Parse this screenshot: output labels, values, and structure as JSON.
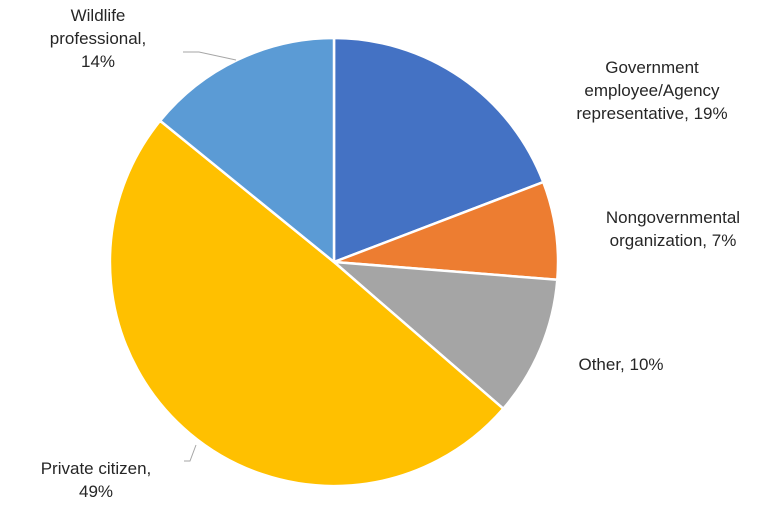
{
  "chart_data": {
    "type": "pie",
    "title": "",
    "slices": [
      {
        "lines": [
          "Government",
          "employee/Agency",
          "representative, 19%"
        ],
        "value": 19,
        "color": "#4472c4"
      },
      {
        "lines": [
          "Nongovernmental",
          "organization, 7%"
        ],
        "value": 7,
        "color": "#ed7d31"
      },
      {
        "lines": [
          "Other, 10%"
        ],
        "value": 10,
        "color": "#a5a5a5"
      },
      {
        "lines": [
          "Private citizen,",
          "49%"
        ],
        "value": 49,
        "color": "#ffc000"
      },
      {
        "lines": [
          "Wildlife",
          "professional,",
          "14%"
        ],
        "value": 14,
        "color": "#5b9bd5"
      }
    ],
    "start_angle_deg": 0,
    "direction": "clockwise",
    "legend": "none"
  }
}
